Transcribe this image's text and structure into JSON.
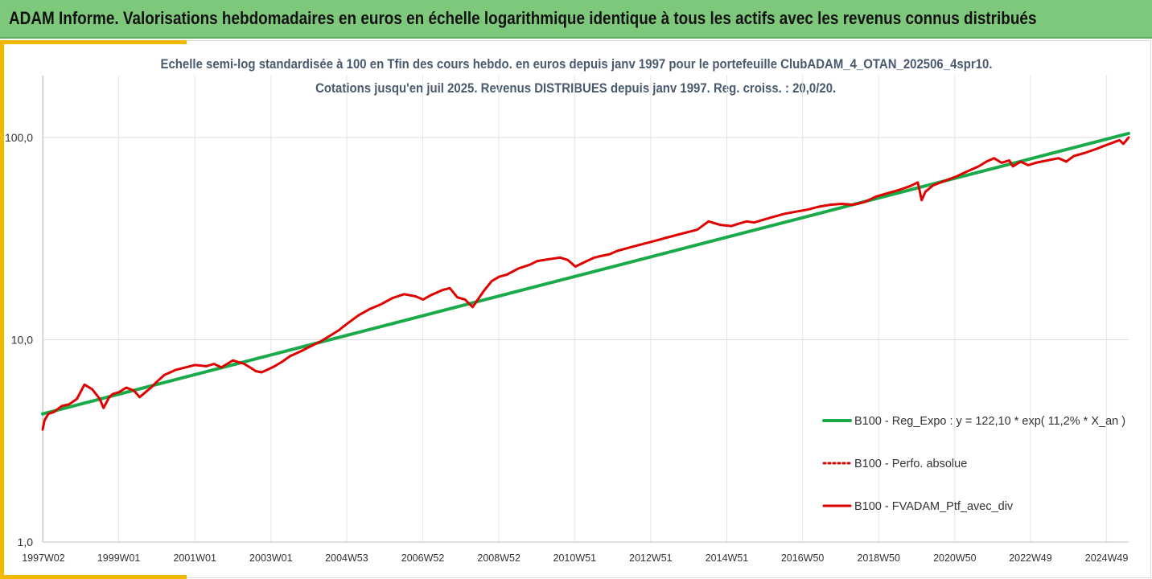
{
  "header": {
    "title": "ADAM Informe. Valorisations hebdomadaires en euros en échelle logarithmique identique à tous les actifs avec les revenus connus distribués"
  },
  "chart_data": {
    "type": "line",
    "title": "Echelle semi-log standardisée  à 100 en Tfin des cours hebdo.  en euros depuis janv 1997 pour le portefeuille ClubADAM_4_OTAN_202506_4spr10.",
    "subtitle": "Cotations  jusqu'en juil 2025. Revenus DISTRIBUES depuis janv 1997. Reg. croiss. : 20,0/20.",
    "y_scale": "log",
    "ylim": [
      1,
      200
    ],
    "y_ticks": [
      "1,0",
      "10,0",
      "100,0"
    ],
    "y_tick_values": [
      1,
      10,
      100
    ],
    "x_range": [
      1997.0,
      2025.54
    ],
    "x_ticks": [
      "1997W02",
      "1999W01",
      "2001W01",
      "2003W01",
      "2004W53",
      "2006W52",
      "2008W52",
      "2010W51",
      "2012W51",
      "2014W51",
      "2016W50",
      "2018W50",
      "2020W50",
      "2022W49",
      "2024W49"
    ],
    "x_tick_values": [
      1997.02,
      1999.0,
      2001.0,
      2003.0,
      2004.99,
      2006.99,
      2008.99,
      2010.98,
      2012.98,
      2014.98,
      2016.97,
      2018.97,
      2020.97,
      2022.96,
      2024.96
    ],
    "grid": "horizontal and vertical, light grey",
    "legend_position": "right-lower",
    "series": [
      {
        "name": "B100 - Reg_Expo : y = 122,10 * exp( 11,2% *  X_an )",
        "color": "#1aaa4a",
        "style": "solid-thick",
        "x": [
          1997.0,
          2025.54
        ],
        "values": [
          4.3,
          104.8
        ]
      },
      {
        "name": "B100 - Perfo. absolue",
        "color": "#e00000",
        "style": "dotted",
        "x": [],
        "values": []
      },
      {
        "name": "B100 - FVADAM_Ptf_avec_div",
        "color": "#e00000",
        "style": "solid",
        "x": [
          1997.0,
          1997.05,
          1997.15,
          1997.3,
          1997.5,
          1997.7,
          1997.9,
          1998.1,
          1998.3,
          1998.5,
          1998.6,
          1998.75,
          1998.85,
          1999.0,
          1999.2,
          1999.4,
          1999.55,
          1999.7,
          1999.85,
          2000.0,
          2000.2,
          2000.5,
          2000.75,
          2001.0,
          2001.3,
          2001.5,
          2001.7,
          2001.8,
          2002.0,
          2002.3,
          2002.5,
          2002.6,
          2002.75,
          2002.9,
          2003.1,
          2003.3,
          2003.5,
          2003.8,
          2004.0,
          2004.3,
          2004.6,
          2004.8,
          2005.0,
          2005.3,
          2005.6,
          2005.9,
          2006.2,
          2006.5,
          2006.8,
          2007.0,
          2007.2,
          2007.5,
          2007.7,
          2007.9,
          2008.1,
          2008.3,
          2008.6,
          2008.8,
          2009.0,
          2009.2,
          2009.5,
          2009.8,
          2010.0,
          2010.3,
          2010.6,
          2010.8,
          2011.0,
          2011.3,
          2011.5,
          2011.7,
          2011.9,
          2012.1,
          2012.4,
          2012.7,
          2013.0,
          2013.4,
          2013.8,
          2014.2,
          2014.5,
          2014.8,
          2015.1,
          2015.3,
          2015.5,
          2015.7,
          2015.9,
          2016.2,
          2016.5,
          2016.8,
          2017.1,
          2017.4,
          2017.7,
          2018.0,
          2018.3,
          2018.6,
          2018.9,
          2019.2,
          2019.5,
          2019.8,
          2020.0,
          2020.1,
          2020.2,
          2020.4,
          2020.7,
          2021.0,
          2021.3,
          2021.6,
          2021.8,
          2022.0,
          2022.2,
          2022.4,
          2022.5,
          2022.7,
          2022.9,
          2023.1,
          2023.4,
          2023.7,
          2023.9,
          2024.1,
          2024.4,
          2024.7,
          2024.9,
          2025.1,
          2025.3,
          2025.4,
          2025.54
        ],
        "values": [
          3.6,
          4.0,
          4.3,
          4.4,
          4.7,
          4.8,
          5.1,
          6.0,
          5.7,
          5.1,
          4.6,
          5.2,
          5.4,
          5.5,
          5.8,
          5.6,
          5.2,
          5.5,
          5.8,
          6.2,
          6.7,
          7.1,
          7.3,
          7.5,
          7.4,
          7.6,
          7.3,
          7.5,
          7.9,
          7.6,
          7.2,
          7.0,
          6.9,
          7.1,
          7.4,
          7.8,
          8.3,
          8.8,
          9.2,
          9.8,
          10.6,
          11.2,
          12.0,
          13.2,
          14.2,
          15.0,
          16.1,
          16.8,
          16.4,
          15.8,
          16.6,
          17.6,
          18.0,
          16.2,
          15.8,
          14.5,
          17.5,
          19.5,
          20.5,
          21.0,
          22.5,
          23.5,
          24.5,
          25.0,
          25.5,
          24.8,
          23.0,
          24.5,
          25.5,
          26.0,
          26.5,
          27.5,
          28.5,
          29.5,
          30.5,
          32.0,
          33.5,
          35.0,
          38.5,
          37.0,
          36.5,
          37.5,
          38.5,
          38.0,
          39.0,
          40.5,
          42.0,
          43.0,
          44.0,
          45.5,
          46.5,
          47.0,
          46.5,
          48.0,
          51.0,
          53.0,
          55.0,
          57.5,
          60.0,
          49.0,
          54.0,
          58.0,
          61.0,
          64.0,
          68.0,
          72.0,
          76.0,
          79.0,
          75.0,
          77.0,
          72.0,
          76.0,
          73.0,
          75.0,
          77.0,
          79.0,
          76.0,
          81.0,
          84.0,
          88.0,
          91.0,
          94.0,
          97.0,
          93.0,
          100.0
        ]
      }
    ]
  }
}
